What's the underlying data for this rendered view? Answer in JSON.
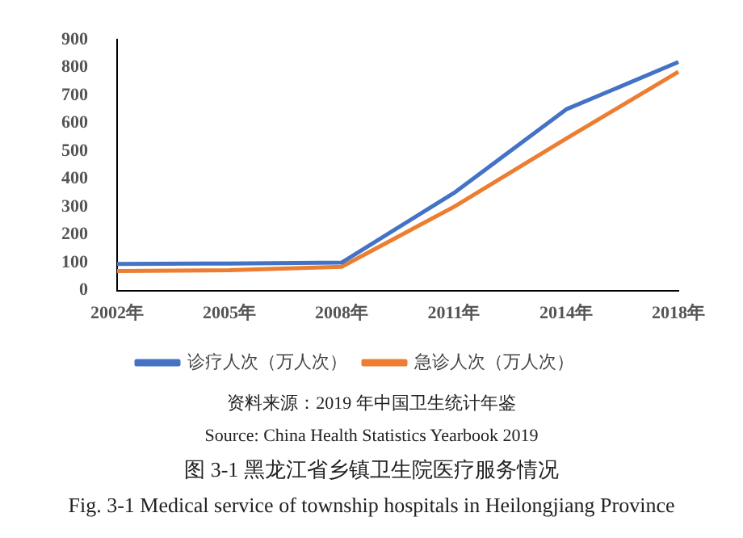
{
  "chart_data": {
    "type": "line",
    "categories": [
      "2002年",
      "2005年",
      "2008年",
      "2011年",
      "2014年",
      "2018年"
    ],
    "series": [
      {
        "name": "诊疗人次（万人次）",
        "color": "#4472c4",
        "values": [
          95,
          97,
          100,
          350,
          650,
          820
        ]
      },
      {
        "name": "急诊人次（万人次）",
        "color": "#ed7d31",
        "values": [
          70,
          73,
          85,
          300,
          545,
          785
        ]
      }
    ],
    "ylim": [
      0,
      900
    ],
    "yticks": [
      0,
      100,
      200,
      300,
      400,
      500,
      600,
      700,
      800,
      900
    ],
    "grid": false,
    "legend": "bottom",
    "marker": "none",
    "line_style": "solid",
    "annotations": [
      "资料来源：2019 年中国卫生统计年鉴",
      "Source: China Health Statistics Yearbook 2019",
      "图 3-1  黑龙江省乡镇卫生院医疗服务情况",
      "Fig. 3-1 Medical service of township hospitals in Heilongjiang Province"
    ]
  }
}
